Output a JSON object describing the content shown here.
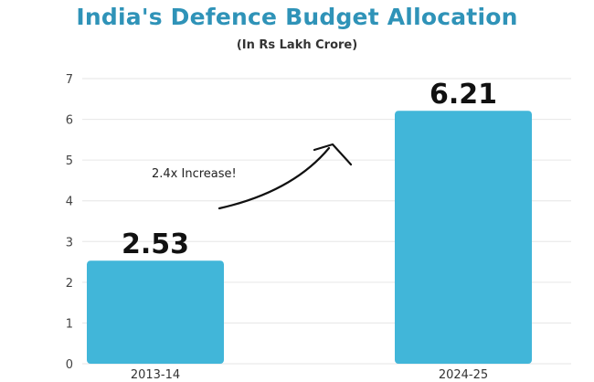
{
  "chart_data": {
    "type": "bar",
    "title": "India's Defence Budget Allocation",
    "subtitle": "(In Rs Lakh Crore)",
    "categories": [
      "2013-14",
      "2024-25"
    ],
    "values": [
      2.53,
      6.21
    ],
    "data_labels": [
      "2.53",
      "6.21"
    ],
    "ylim": [
      0,
      7
    ],
    "yticks": [
      "0",
      "1",
      "2",
      "3",
      "4",
      "5",
      "6",
      "7"
    ],
    "grid": true,
    "xlabel": "",
    "ylabel": "",
    "bar_color": "#41b6d9",
    "annotation": "2.4x Increase!"
  }
}
